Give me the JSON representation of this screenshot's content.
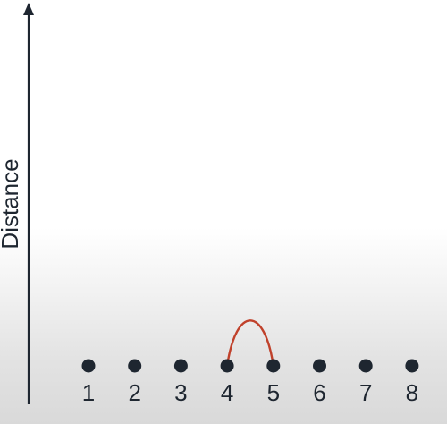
{
  "axis": {
    "y_label": "Distance"
  },
  "points": [
    {
      "label": "1"
    },
    {
      "label": "2"
    },
    {
      "label": "3"
    },
    {
      "label": "4"
    },
    {
      "label": "5"
    },
    {
      "label": "6"
    },
    {
      "label": "7"
    },
    {
      "label": "8"
    }
  ],
  "links": [
    {
      "from": "4",
      "to": "5",
      "color": "#c0412b"
    }
  ],
  "colors": {
    "ink": "#1e2630",
    "link": "#c0412b"
  }
}
